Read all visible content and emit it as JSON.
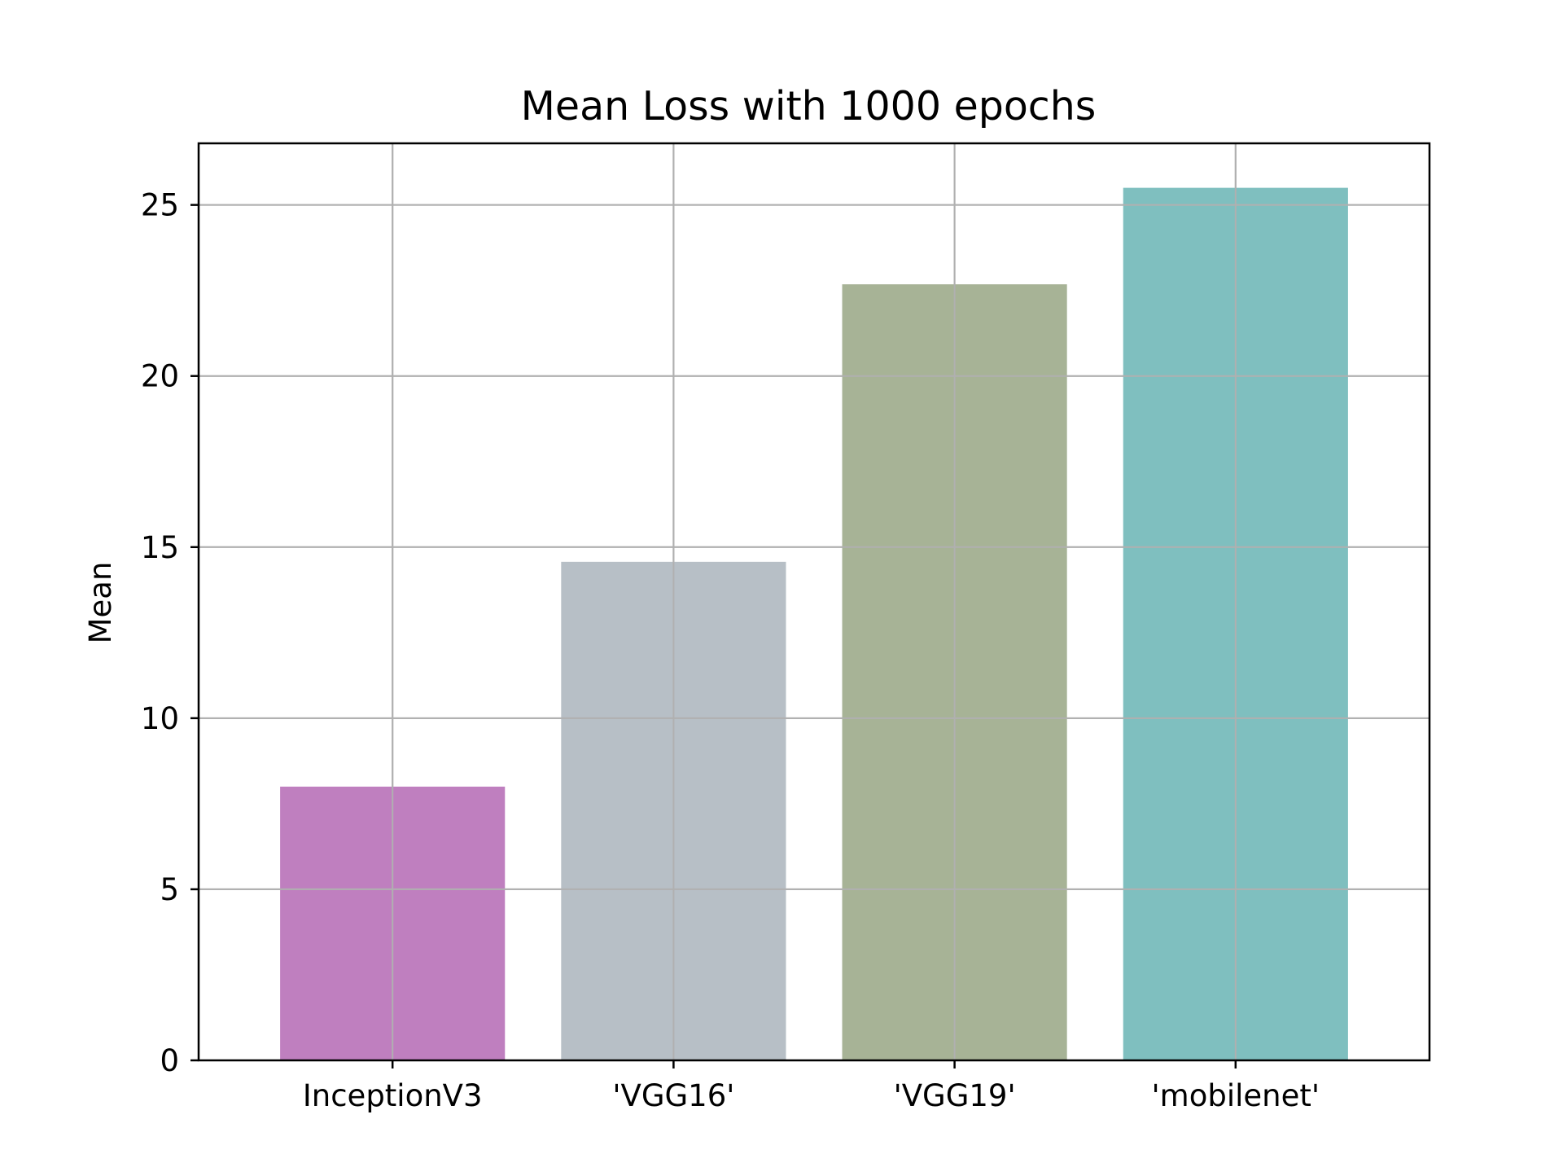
{
  "chart_data": {
    "type": "bar",
    "title": "Mean Loss with 1000 epochs",
    "xlabel": "",
    "ylabel": "Mean",
    "categories": [
      "InceptionV3",
      "'VGG16'",
      "'VGG19'",
      "'mobilenet'"
    ],
    "values": [
      8.0,
      14.57,
      22.68,
      25.5
    ],
    "colors": [
      "#bf7fbf",
      "#b7bfc6",
      "#a7b396",
      "#7fbfbf"
    ],
    "ylim": [
      0,
      26.8
    ],
    "yticks": [
      0,
      5,
      10,
      15,
      20,
      25
    ],
    "ytick_labels": [
      "0",
      "5",
      "10",
      "15",
      "20",
      "25"
    ],
    "grid": true,
    "legend": "none"
  },
  "colors": {
    "grid": "#b0b0b0",
    "axes": "#000000",
    "background": "#ffffff"
  }
}
